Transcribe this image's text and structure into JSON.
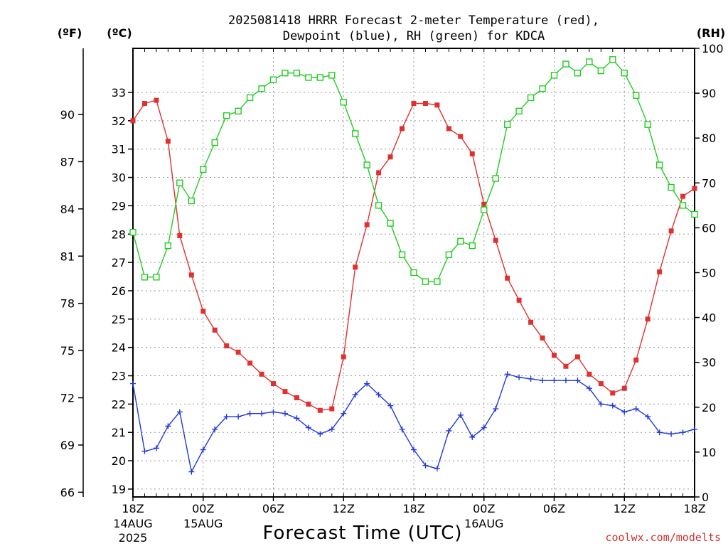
{
  "chart_data": {
    "type": "line",
    "title_line1": "2025081418 HRRR Forecast 2-meter Temperature (red),",
    "title_line2": "Dewpoint (blue), RH (green) for KDCA",
    "xlabel": "Forecast Time (UTC)",
    "credit": "coolwx.com/modelts",
    "units": {
      "f": "(ºF)",
      "c": "(ºC)",
      "rh": "(RH)"
    },
    "hours": [
      0,
      1,
      2,
      3,
      4,
      5,
      6,
      7,
      8,
      9,
      10,
      11,
      12,
      13,
      14,
      15,
      16,
      17,
      18,
      19,
      20,
      21,
      22,
      23,
      24,
      25,
      26,
      27,
      28,
      29,
      30,
      31,
      32,
      33,
      34,
      35,
      36,
      37,
      38,
      39,
      40,
      41,
      42,
      43,
      44,
      45,
      46,
      47,
      48
    ],
    "x_ticks": [
      {
        "hour": 0,
        "label": "18Z",
        "sub1": "14AUG",
        "sub2": "2025"
      },
      {
        "hour": 6,
        "label": "00Z",
        "sub1": "15AUG",
        "sub2": ""
      },
      {
        "hour": 12,
        "label": "06Z",
        "sub1": "",
        "sub2": ""
      },
      {
        "hour": 18,
        "label": "12Z",
        "sub1": "",
        "sub2": ""
      },
      {
        "hour": 24,
        "label": "18Z",
        "sub1": "",
        "sub2": ""
      },
      {
        "hour": 30,
        "label": "00Z",
        "sub1": "16AUG",
        "sub2": ""
      },
      {
        "hour": 36,
        "label": "06Z",
        "sub1": "",
        "sub2": ""
      },
      {
        "hour": 42,
        "label": "12Z",
        "sub1": "",
        "sub2": ""
      },
      {
        "hour": 48,
        "label": "18Z",
        "sub1": "",
        "sub2": ""
      }
    ],
    "celsius_ticks": [
      "19",
      "20",
      "21",
      "22",
      "23",
      "24",
      "25",
      "26",
      "27",
      "28",
      "29",
      "30",
      "31",
      "32",
      "33"
    ],
    "fahrenheit_ticks": [
      "66",
      "69",
      "72",
      "75",
      "78",
      "81",
      "84",
      "87",
      "90"
    ],
    "rh_ticks": [
      "0",
      "10",
      "20",
      "30",
      "40",
      "50",
      "60",
      "70",
      "80",
      "90",
      "100"
    ],
    "ylim_f": [
      65.7,
      94.2
    ],
    "ylim_rh": [
      0,
      100
    ],
    "series": [
      {
        "color": "#e03030",
        "marker": "square-filled",
        "axis": "f",
        "values": [
          89.6,
          90.7,
          90.9,
          88.3,
          82.3,
          79.8,
          77.5,
          76.3,
          75.3,
          74.9,
          74.2,
          73.5,
          72.9,
          72.4,
          72.0,
          71.6,
          71.2,
          71.3,
          74.6,
          80.3,
          83.0,
          86.3,
          87.3,
          89.1,
          90.7,
          90.7,
          90.6,
          89.1,
          88.6,
          87.5,
          84.3,
          82.0,
          79.6,
          78.2,
          76.8,
          75.8,
          74.7,
          74.0,
          74.6,
          73.5,
          72.9,
          72.3,
          72.6,
          74.4,
          77.0,
          80.0,
          82.6,
          84.8,
          85.3
        ]
      },
      {
        "color": "#2238dd",
        "marker": "plus",
        "axis": "f",
        "values": [
          72.9,
          68.6,
          68.8,
          70.2,
          71.1,
          67.3,
          68.7,
          70.0,
          70.8,
          70.8,
          71.0,
          71.0,
          71.1,
          71.0,
          70.7,
          70.1,
          69.7,
          70.0,
          71.0,
          72.2,
          72.9,
          72.2,
          71.5,
          70.0,
          68.7,
          67.7,
          67.5,
          69.9,
          70.9,
          69.5,
          70.1,
          71.3,
          73.5,
          73.3,
          73.2,
          73.1,
          73.1,
          73.1,
          73.1,
          72.6,
          71.6,
          71.5,
          71.1,
          71.3,
          70.8,
          69.8,
          69.7,
          69.8,
          70.0
        ]
      },
      {
        "color": "#22cc22",
        "marker": "square-open",
        "axis": "rh",
        "values": [
          59,
          49,
          49,
          56,
          70,
          66,
          73,
          79,
          85,
          86,
          89,
          91,
          93,
          94.5,
          94.5,
          93.5,
          93.5,
          94,
          88,
          81,
          74,
          65,
          61,
          54,
          50,
          48,
          48,
          54,
          57,
          56,
          64,
          71,
          83,
          86,
          89,
          91,
          94,
          96.5,
          94.5,
          97,
          95,
          97.5,
          94.5,
          89.5,
          83,
          74,
          69,
          65,
          63
        ]
      }
    ]
  }
}
